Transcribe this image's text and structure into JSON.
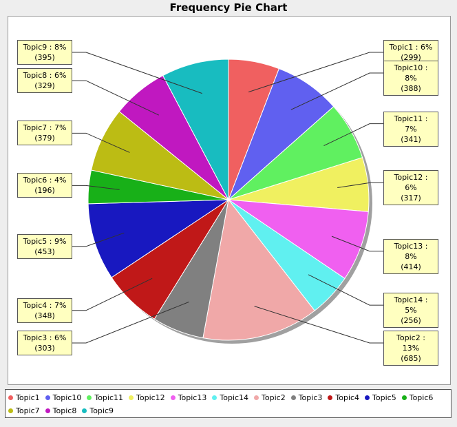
{
  "chart_data": {
    "type": "pie",
    "title": "Frequency Pie Chart",
    "start_angle_deg": 90,
    "direction": "clockwise",
    "legend_position": "bottom",
    "slices": [
      {
        "name": "Topic1",
        "label": "Topic1 : 6%",
        "count": "(299)",
        "value": 299,
        "color": "#f06060"
      },
      {
        "name": "Topic10",
        "label": "Topic10 : 8%",
        "count": "(388)",
        "value": 388,
        "color": "#6060f0"
      },
      {
        "name": "Topic11",
        "label": "Topic11 : 7%",
        "count": "(341)",
        "value": 341,
        "color": "#60f060"
      },
      {
        "name": "Topic12",
        "label": "Topic12 : 6%",
        "count": "(317)",
        "value": 317,
        "color": "#f0f060"
      },
      {
        "name": "Topic13",
        "label": "Topic13 : 8%",
        "count": "(414)",
        "value": 414,
        "color": "#f060f0"
      },
      {
        "name": "Topic14",
        "label": "Topic14 : 5%",
        "count": "(256)",
        "value": 256,
        "color": "#60f0f0"
      },
      {
        "name": "Topic2",
        "label": "Topic2 : 13%",
        "count": "(685)",
        "value": 685,
        "color": "#f0a8a8"
      },
      {
        "name": "Topic3",
        "label": "Topic3 : 6%",
        "count": "(303)",
        "value": 303,
        "color": "#808080"
      },
      {
        "name": "Topic4",
        "label": "Topic4 : 7%",
        "count": "(348)",
        "value": 348,
        "color": "#c01818"
      },
      {
        "name": "Topic5",
        "label": "Topic5 : 9%",
        "count": "(453)",
        "value": 453,
        "color": "#1818c0"
      },
      {
        "name": "Topic6",
        "label": "Topic6 : 4%",
        "count": "(196)",
        "value": 196,
        "color": "#18b018"
      },
      {
        "name": "Topic7",
        "label": "Topic7 : 7%",
        "count": "(379)",
        "value": 379,
        "color": "#bcbc14"
      },
      {
        "name": "Topic8",
        "label": "Topic8 : 6%",
        "count": "(329)",
        "value": 329,
        "color": "#c018c0"
      },
      {
        "name": "Topic9",
        "label": "Topic9 : 8%",
        "count": "(395)",
        "value": 395,
        "color": "#18bcc0"
      }
    ]
  }
}
